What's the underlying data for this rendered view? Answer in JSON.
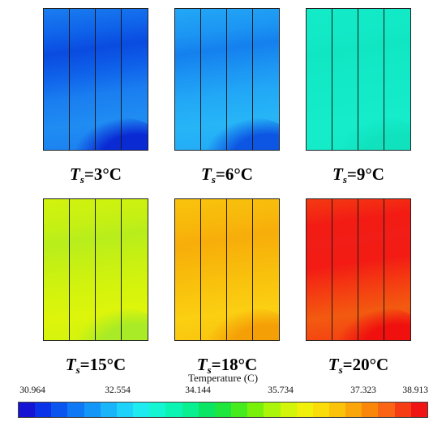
{
  "panels": [
    {
      "label_sub": "s",
      "label_value": "=3°C",
      "colors": [
        "#0a4be0",
        "#0f62ea",
        "#1a7ef0",
        "#1f8cf2"
      ],
      "accent": "#0a2ad4"
    },
    {
      "label_sub": "s",
      "label_value": "=6°C",
      "colors": [
        "#1480ee",
        "#1c95f3",
        "#22a8f6",
        "#26b5f7"
      ],
      "accent": "#0d55e3"
    },
    {
      "label_sub": "s",
      "label_value": "=9°C",
      "colors": [
        "#10e6c2",
        "#12e9c6",
        "#13ebc8",
        "#14ecca"
      ],
      "accent": "#10e2be"
    },
    {
      "label_sub": "s",
      "label_value": "=15°C",
      "colors": [
        "#b8ee1c",
        "#c6f013",
        "#d2f30d",
        "#ddf50b"
      ],
      "accent": "#a8eb26"
    },
    {
      "label_sub": "s",
      "label_value": "=18°C",
      "colors": [
        "#f7ad0a",
        "#f8b80b",
        "#f9c30d",
        "#fbcf12"
      ],
      "accent": "#f59f07"
    },
    {
      "label_sub": "s",
      "label_value": "=20°C",
      "colors": [
        "#f21d16",
        "#f31b14",
        "#f43a12",
        "#f35a10"
      ],
      "accent": "#f0100e"
    }
  ],
  "label_prefix": "T",
  "colorbar": {
    "title": "Temperature (C)",
    "tick_labels": [
      "30.964",
      "32.554",
      "34.144",
      "35.734",
      "37.323",
      "38.913"
    ],
    "min": 30.964,
    "max": 38.913,
    "colors": [
      "#1414d2",
      "#0a32e8",
      "#0a55f0",
      "#0f78f5",
      "#1496f8",
      "#1ab4fa",
      "#1ed2fa",
      "#1eebf0",
      "#14f5d2",
      "#0af5b4",
      "#0af090",
      "#0ae664",
      "#1ee63c",
      "#46eb1e",
      "#78f00a",
      "#aaf50a",
      "#d2f50a",
      "#f0f00a",
      "#fadc0a",
      "#fac30a",
      "#faa50a",
      "#fa870a",
      "#fa6414",
      "#f53c14",
      "#f01414"
    ]
  }
}
